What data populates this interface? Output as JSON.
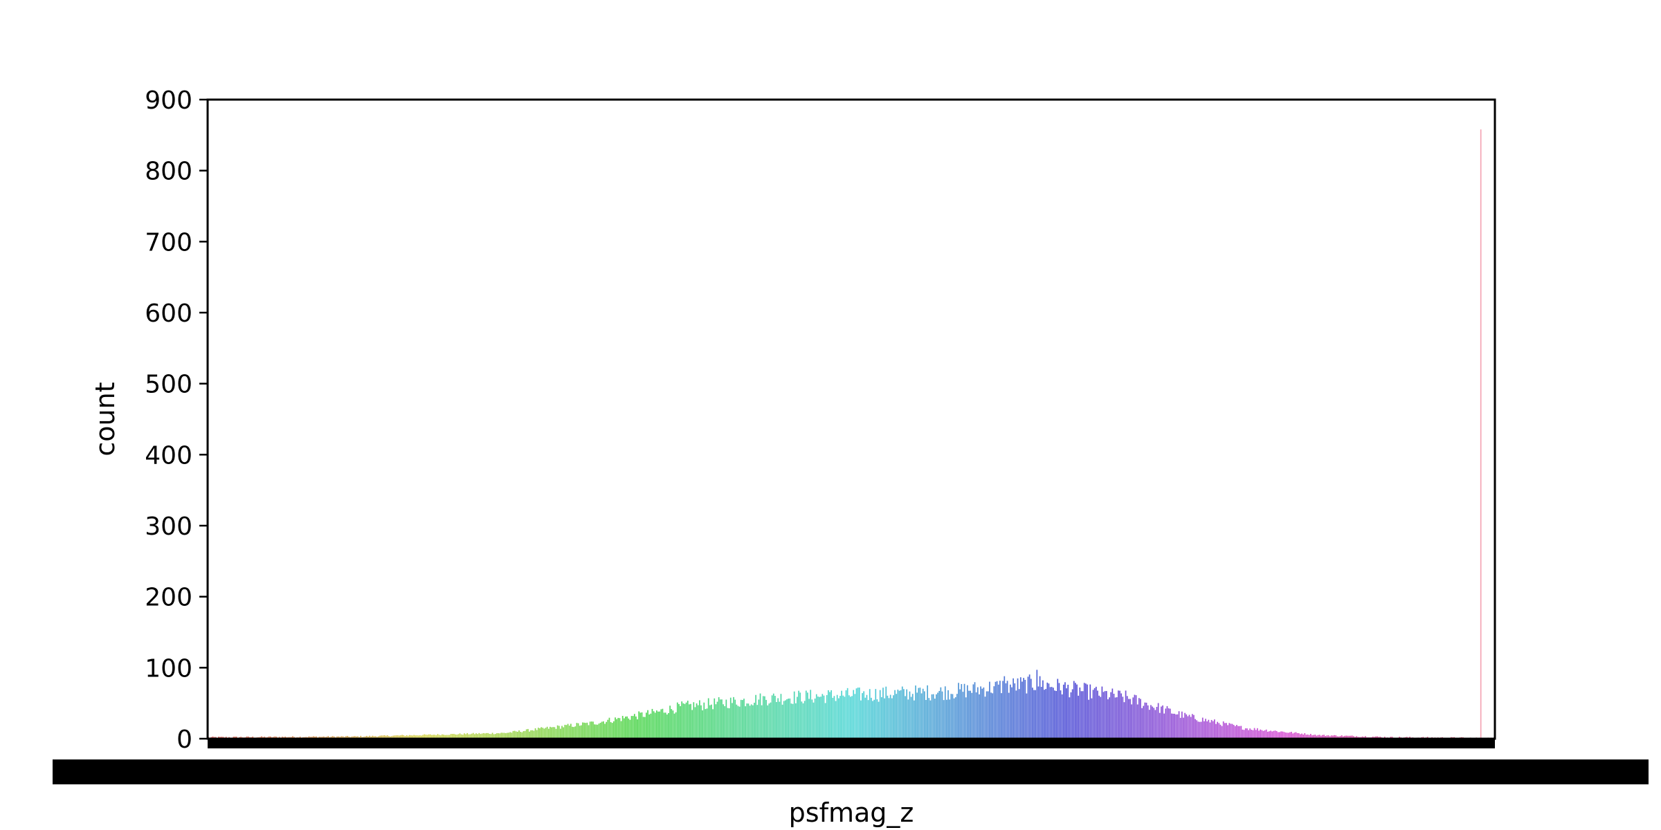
{
  "chart_data": {
    "type": "bar",
    "title": "",
    "xlabel": "psfmag_z",
    "ylabel": "count",
    "ylim": [
      0,
      900
    ],
    "yticks": [
      0,
      100,
      200,
      300,
      400,
      500,
      600,
      700,
      800,
      900
    ],
    "grid": false,
    "legend": "none",
    "palette": "husl",
    "category_count": 870,
    "profile_points": [
      {
        "bin": 0,
        "count": 2
      },
      {
        "bin": 100,
        "count": 3
      },
      {
        "bin": 200,
        "count": 8
      },
      {
        "bin": 260,
        "count": 22
      },
      {
        "bin": 300,
        "count": 36
      },
      {
        "bin": 320,
        "count": 45
      },
      {
        "bin": 380,
        "count": 57
      },
      {
        "bin": 440,
        "count": 62
      },
      {
        "bin": 500,
        "count": 66
      },
      {
        "bin": 540,
        "count": 74
      },
      {
        "bin": 560,
        "count": 78
      },
      {
        "bin": 580,
        "count": 71
      },
      {
        "bin": 620,
        "count": 58
      },
      {
        "bin": 660,
        "count": 32
      },
      {
        "bin": 700,
        "count": 15
      },
      {
        "bin": 750,
        "count": 5
      },
      {
        "bin": 800,
        "count": 2
      },
      {
        "bin": 860,
        "count": 1
      },
      {
        "bin": 869,
        "count": 1
      }
    ],
    "peak_bars": [
      {
        "bin": 538,
        "count": 88
      },
      {
        "bin": 560,
        "count": 97
      }
    ],
    "outlier_bar": {
      "bin": 860,
      "count": 858,
      "color": "#f4a4b4"
    }
  }
}
